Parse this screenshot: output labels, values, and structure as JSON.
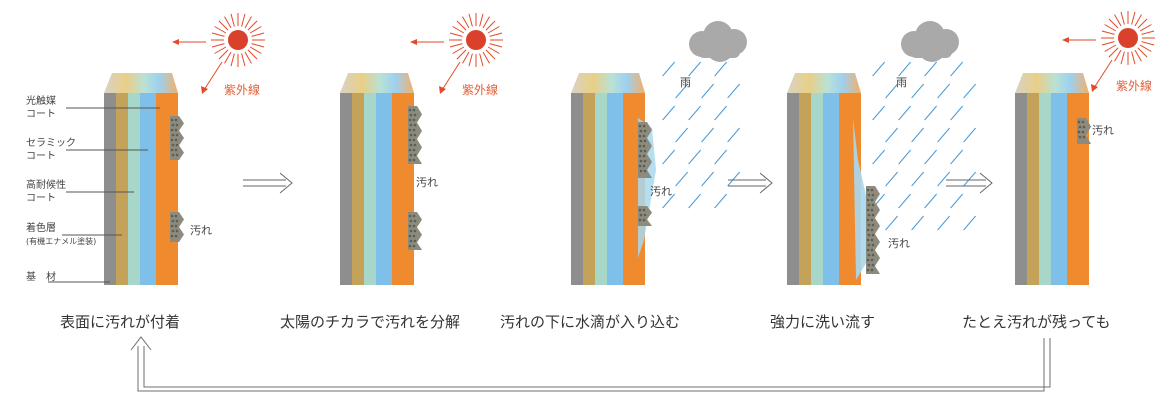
{
  "layer_labels": [
    [
      "光触媒",
      "コート"
    ],
    [
      "セラミック",
      "コート"
    ],
    [
      "高耐候性",
      "コート"
    ],
    [
      "着色層",
      "(有機エナメル塗装)"
    ],
    [
      "基　材"
    ]
  ],
  "uv_label": "紫外線",
  "rain_label": "雨",
  "dirt_label": "汚れ",
  "captions": [
    "表面に汚れが付着",
    "太陽のチカラで汚れを分解",
    "汚れの下に水滴が入り込む",
    "強力に洗い流す",
    "たとえ汚れが残っても"
  ],
  "colors": {
    "uv_text": "#e0603a",
    "sun": "#d9412a",
    "ray": "#e24a2a",
    "rain": "#4a9ad6",
    "cloud": "#a9a9a9",
    "dirt": "#8c8b7e",
    "water": "#a8d8ee",
    "layers": [
      "#8e8e8e",
      "#c4a25a",
      "#a6d7c8",
      "#7ec0ea",
      "#ef8a2e"
    ],
    "loop_arrow": "#6f6f6f"
  }
}
